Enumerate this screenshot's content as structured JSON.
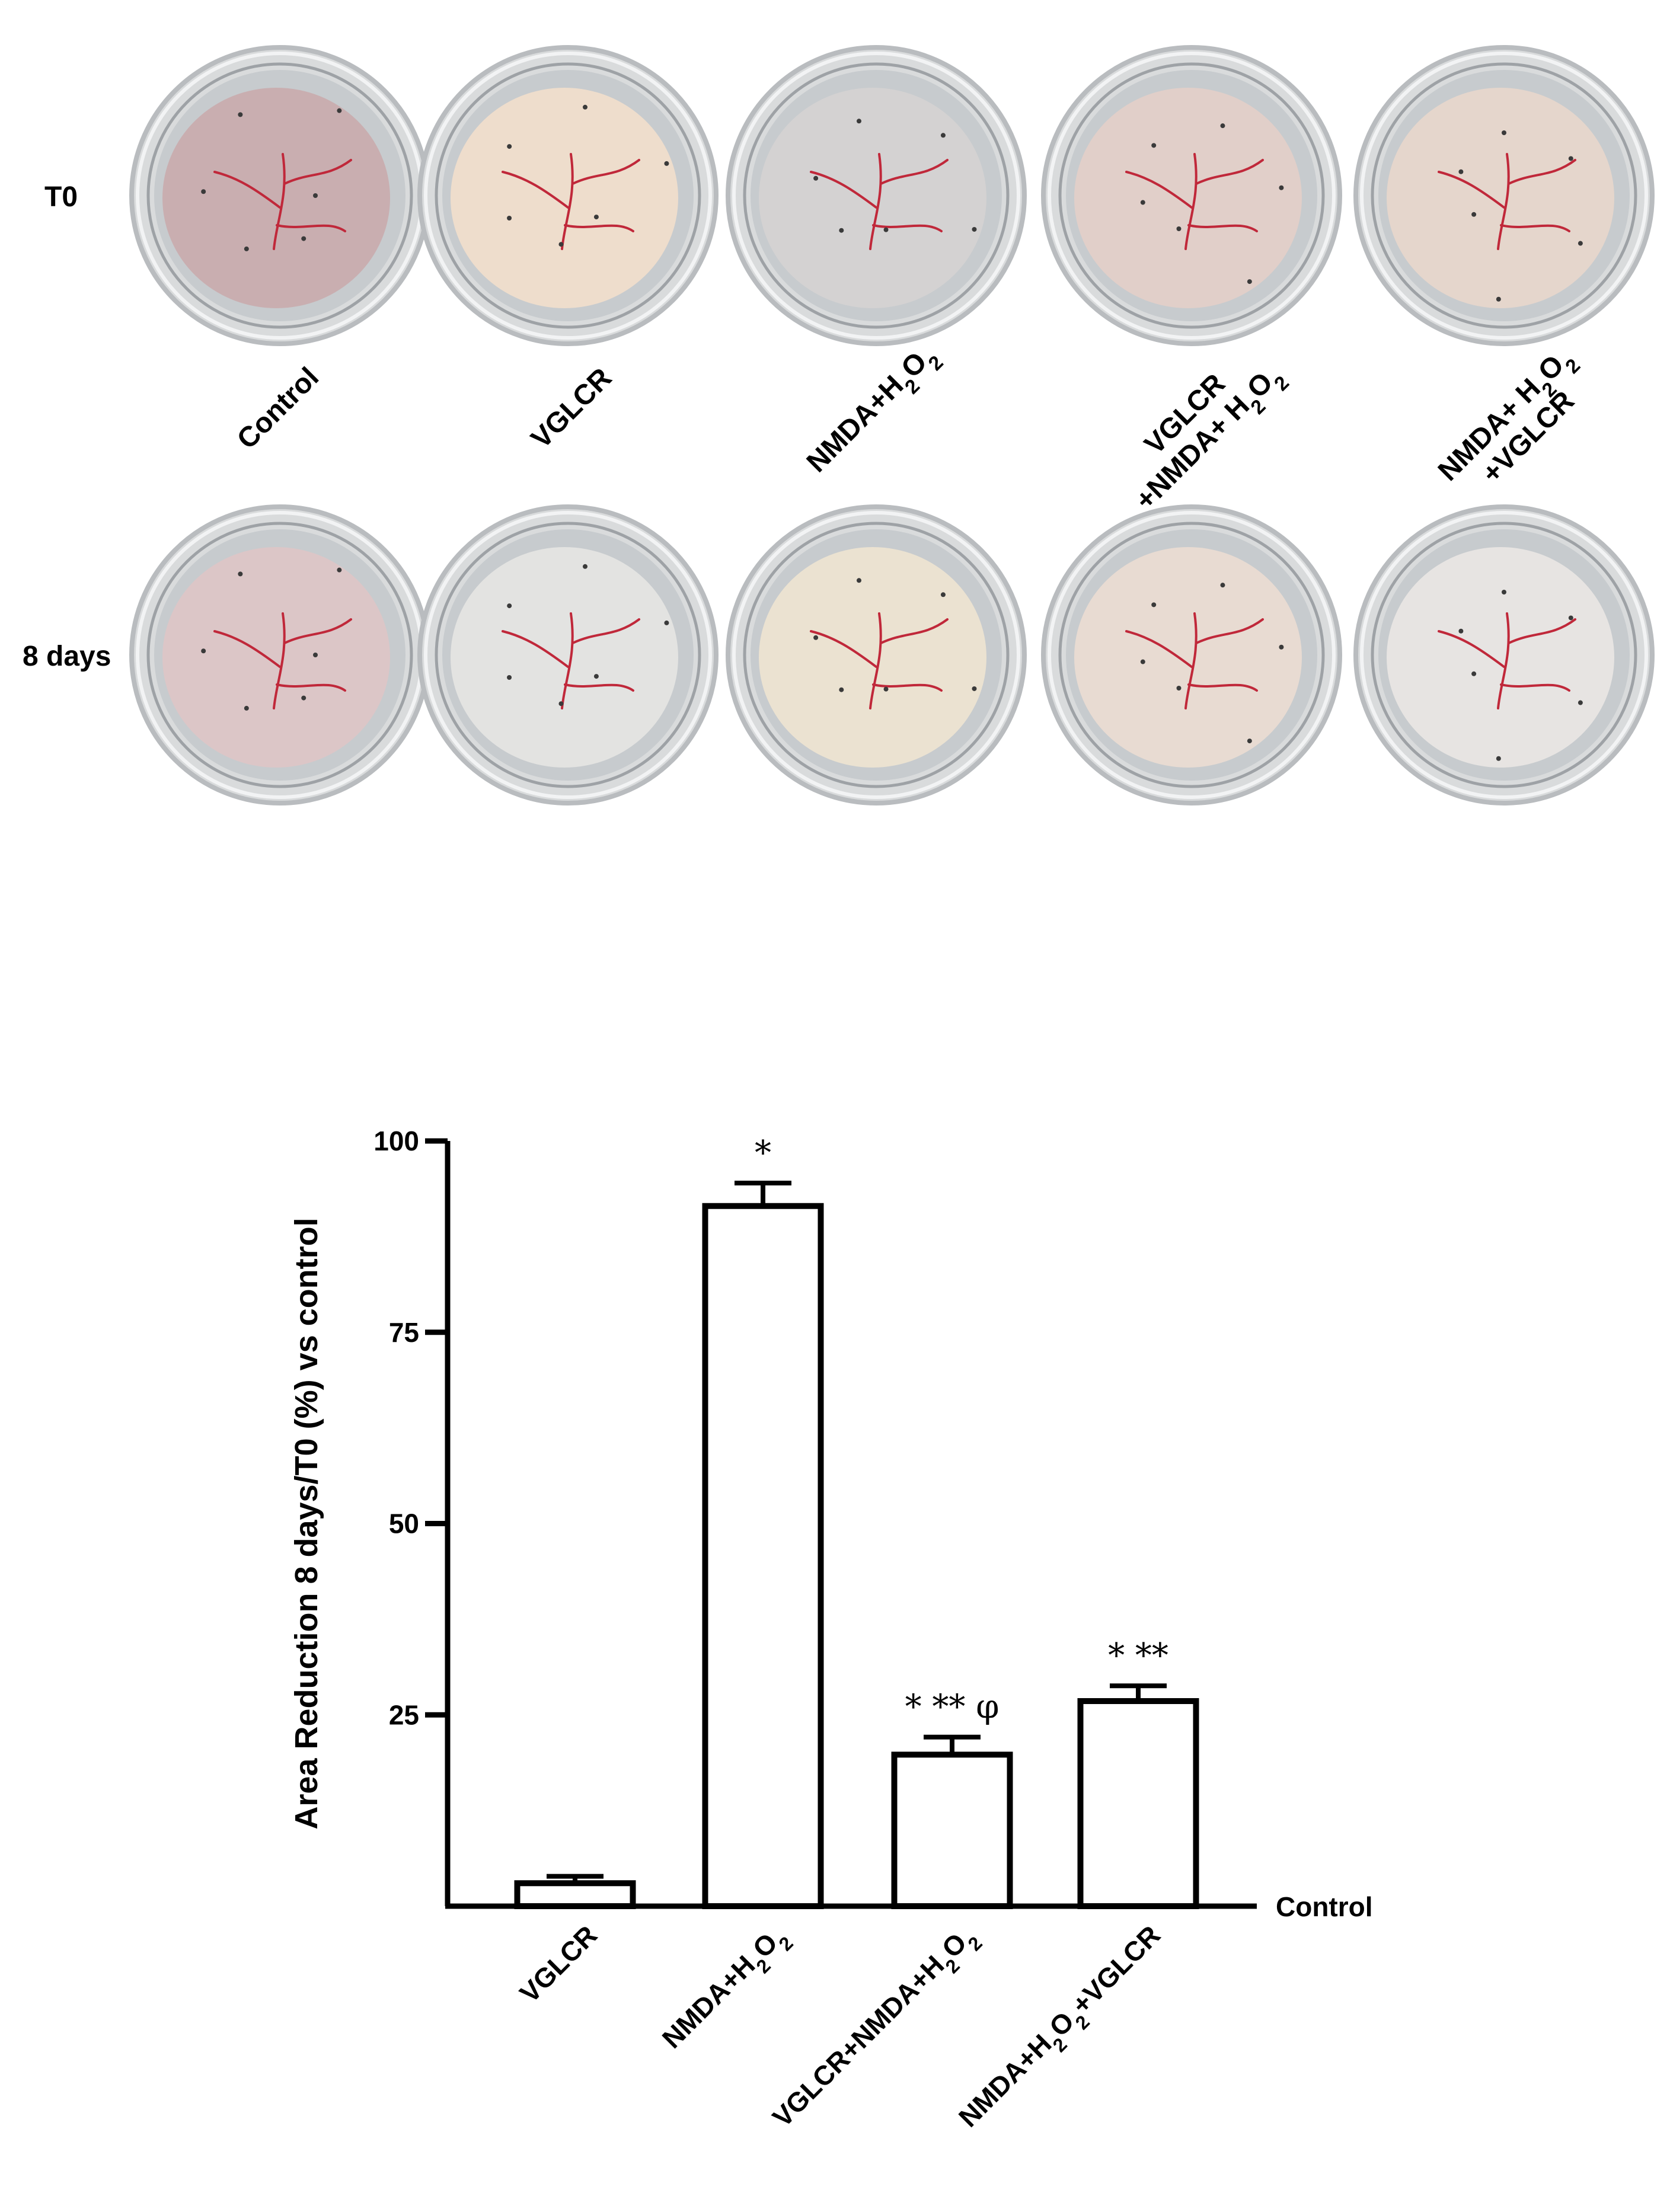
{
  "photo_panel": {
    "row_labels": [
      "T0",
      "8 days"
    ],
    "column_labels": [
      {
        "parts": [
          {
            "t": "Control"
          }
        ]
      },
      {
        "parts": [
          {
            "t": "VGLCR"
          }
        ]
      },
      {
        "parts": [
          {
            "t": "NMDA+H"
          },
          {
            "t": "2",
            "sub": true
          },
          {
            "t": "O"
          },
          {
            "t": "2",
            "sub": true
          }
        ]
      },
      {
        "lines": [
          [
            {
              "t": "VGLCR"
            }
          ],
          [
            {
              "t": "+NMDA+ H"
            },
            {
              "t": "2",
              "sub": true
            },
            {
              "t": "O"
            },
            {
              "t": "2",
              "sub": true
            }
          ]
        ]
      },
      {
        "lines": [
          [
            {
              "t": "NMDA+ H"
            },
            {
              "t": "2",
              "sub": true
            },
            {
              "t": "O"
            },
            {
              "t": "2",
              "sub": true
            }
          ],
          [
            {
              "t": "+VGLCR"
            }
          ]
        ]
      }
    ],
    "dish_colors": {
      "t0": [
        "#c9aeb0",
        "#eeddcc",
        "#d4d2d2",
        "#e1cfc9",
        "#e5d6cc"
      ],
      "day8": [
        "#dcc6c7",
        "#e3e3e1",
        "#ebe2d1",
        "#e8dbd2",
        "#e7e4e2"
      ]
    },
    "vessel_color": "#c0283a"
  },
  "chart_data": {
    "type": "bar",
    "ylabel": "Area Reduction 8 days/T0 (%) vs control",
    "baseline_label": "Control",
    "ylim": [
      0,
      100
    ],
    "yticks": [
      25,
      50,
      75,
      100
    ],
    "grid": false,
    "categories": [
      {
        "parts": [
          {
            "t": "VGLCR"
          }
        ]
      },
      {
        "parts": [
          {
            "t": "NMDA+H"
          },
          {
            "t": "2",
            "sub": true
          },
          {
            "t": "O"
          },
          {
            "t": "2",
            "sub": true
          }
        ]
      },
      {
        "parts": [
          {
            "t": "VGLCR+NMDA+H"
          },
          {
            "t": "2",
            "sub": true
          },
          {
            "t": "O"
          },
          {
            "t": "2",
            "sub": true
          }
        ]
      },
      {
        "parts": [
          {
            "t": "NMDA+H"
          },
          {
            "t": "2",
            "sub": true
          },
          {
            "t": "O"
          },
          {
            "t": "2",
            "sub": true
          },
          {
            "t": "+VGLCR"
          }
        ]
      }
    ],
    "values": [
      3,
      91.5,
      19.8,
      26.8
    ],
    "errors": [
      0.9,
      3.0,
      2.3,
      2.0
    ],
    "annotations": [
      "",
      "*",
      "* ** φ",
      "* **"
    ]
  }
}
